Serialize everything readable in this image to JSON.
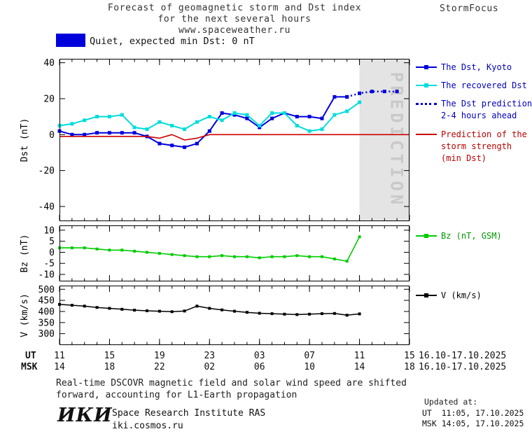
{
  "header": {
    "title_line1": "Forecast of geomagnetic storm and Dst index",
    "title_line2": "for the next several hours",
    "title_line3": "www.spaceweather.ru",
    "brand": "StormFocus"
  },
  "status": {
    "label": "Quiet, expected min Dst: 0 nT",
    "box_color": "#0000dd"
  },
  "colors": {
    "dst_blue": "#0000dd",
    "recovered_cyan": "#00dddd",
    "strength_red": "#cc0000",
    "bz_green": "#00cc00",
    "v_black": "#000000",
    "legend_text_blue": "#0000bb",
    "legend_text_red": "#bb0000",
    "legend_text_green": "#009900",
    "legend_text_black": "#000000",
    "band_gray": "#e4e4e4"
  },
  "legend_dst": {
    "kyoto": {
      "lines": [
        "The Dst, Kyoto"
      ]
    },
    "recovered": {
      "lines": [
        "The recovered Dst"
      ]
    },
    "prediction": {
      "lines": [
        "The Dst prediction",
        "2-4 hours ahead"
      ]
    },
    "strength": {
      "lines": [
        "Prediction of the",
        "storm strength",
        "(min Dst)"
      ]
    }
  },
  "legend_bz": {
    "lines": [
      "Bz (nT, GSM)"
    ]
  },
  "legend_v": {
    "lines": [
      "V (km/s)"
    ]
  },
  "xaxis": {
    "ut_label": "UT",
    "msk_label": "MSK",
    "tick_hours": [
      11,
      15,
      19,
      23,
      27,
      31,
      35,
      39
    ],
    "ut_labels": [
      "11",
      "15",
      "19",
      "23",
      "03",
      "07",
      "11",
      "15"
    ],
    "msk_labels": [
      "14",
      "18",
      "22",
      "02",
      "06",
      "10",
      "14",
      "18"
    ],
    "ut_date_range": "16.10-17.10.2025",
    "msk_date_range": "16.10-17.10.2025"
  },
  "chart_data": [
    {
      "type": "line",
      "title": "Dst index: observed, recovered and predicted",
      "ylabel": "Dst (nT)",
      "xlabel": "UT hours 16.10-17.10.2025",
      "xlim": [
        11,
        39
      ],
      "ylim": [
        -48,
        42
      ],
      "yticks": [
        40,
        20,
        0,
        -20,
        -40
      ],
      "grid": false,
      "legend_position": "right",
      "prediction_band": {
        "x0": 35,
        "x1": 39,
        "label": "PREDICTION",
        "fill": "#e4e4e4",
        "text_color": "#c9c9c9"
      },
      "series": [
        {
          "name": "The Dst, Kyoto",
          "color": "#0000dd",
          "line": "solid",
          "marker": "square",
          "width": 2,
          "marker_size": 5,
          "x": [
            11,
            12,
            13,
            14,
            15,
            16,
            17,
            18,
            19,
            20,
            21,
            22,
            23,
            24,
            25,
            26,
            27,
            28,
            29,
            30,
            31,
            32,
            33,
            34
          ],
          "y": [
            2,
            0,
            0,
            1,
            1,
            1,
            1,
            -1,
            -5,
            -6,
            -7,
            -5,
            2,
            12,
            11,
            9,
            4,
            9,
            12,
            10,
            10,
            9,
            21,
            21
          ]
        },
        {
          "name": "The recovered Dst",
          "color": "#00dddd",
          "line": "solid",
          "marker": "square",
          "width": 2,
          "marker_size": 5,
          "x": [
            11,
            12,
            13,
            14,
            15,
            16,
            17,
            18,
            19,
            20,
            21,
            22,
            23,
            24,
            25,
            26,
            27,
            28,
            29,
            30,
            31,
            32,
            33,
            34,
            35
          ],
          "y": [
            5,
            6,
            8,
            10,
            10,
            11,
            4,
            3,
            7,
            5,
            3,
            7,
            10,
            8,
            12,
            11,
            5,
            12,
            12,
            5,
            2,
            3,
            11,
            13,
            18
          ]
        },
        {
          "name": "The Dst prediction 2-4 hours ahead",
          "color": "#0000dd",
          "line": "dotted",
          "marker": "square",
          "width": 2.5,
          "marker_size": 5,
          "x": [
            34,
            35,
            36,
            37,
            38
          ],
          "y": [
            21,
            23,
            24,
            24,
            24
          ]
        },
        {
          "name": "Prediction of the storm strength (min Dst)",
          "color": "#cc0000",
          "line": "solid",
          "marker": "none",
          "width": 1.6,
          "x": [
            11,
            12,
            13,
            14,
            15,
            16,
            17,
            18,
            19,
            20,
            21,
            22,
            23,
            24,
            25,
            26,
            27,
            28,
            29,
            30,
            31,
            32,
            33,
            34,
            35,
            36,
            37,
            38,
            39
          ],
          "y": [
            -1,
            -1,
            -1,
            -1,
            -1,
            -1,
            -1,
            -1,
            -2,
            0,
            -3,
            -2,
            0,
            0,
            0,
            0,
            0,
            0,
            0,
            0,
            0,
            0,
            0,
            0,
            0,
            0,
            0,
            0,
            0
          ]
        }
      ]
    },
    {
      "type": "line",
      "title": "Bz component of interplanetary magnetic field",
      "ylabel": "Bz (nT)",
      "xlim": [
        11,
        39
      ],
      "ylim": [
        -13,
        12
      ],
      "yticks": [
        10,
        5,
        0,
        -5,
        -10
      ],
      "grid": false,
      "series": [
        {
          "name": "Bz (nT, GSM)",
          "color": "#00cc00",
          "line": "solid",
          "marker": "square",
          "width": 1.6,
          "marker_size": 4,
          "x": [
            11,
            12,
            13,
            14,
            15,
            16,
            17,
            18,
            19,
            20,
            21,
            22,
            23,
            24,
            25,
            26,
            27,
            28,
            29,
            30,
            31,
            32,
            33,
            34,
            35
          ],
          "y": [
            2,
            2,
            2,
            1.5,
            1,
            1,
            0.5,
            0,
            -0.5,
            -1,
            -1.5,
            -2,
            -2,
            -1.5,
            -2,
            -2,
            -2.5,
            -2,
            -2,
            -1.5,
            -2,
            -2,
            -3,
            -4,
            7
          ]
        }
      ]
    },
    {
      "type": "line",
      "title": "Solar wind speed",
      "ylabel": "V (km/s)",
      "xlim": [
        11,
        39
      ],
      "ylim": [
        250,
        515
      ],
      "yticks": [
        500,
        450,
        400,
        350,
        300
      ],
      "grid": false,
      "series": [
        {
          "name": "V (km/s)",
          "color": "#000000",
          "line": "solid",
          "marker": "square",
          "width": 1.5,
          "marker_size": 4,
          "x": [
            11,
            12,
            13,
            14,
            15,
            16,
            17,
            18,
            19,
            20,
            21,
            22,
            23,
            24,
            25,
            26,
            27,
            28,
            29,
            30,
            31,
            32,
            33,
            34,
            35
          ],
          "y": [
            432,
            428,
            424,
            418,
            414,
            410,
            406,
            403,
            401,
            399,
            402,
            424,
            414,
            407,
            401,
            396,
            392,
            390,
            388,
            386,
            388,
            390,
            391,
            383,
            389
          ]
        }
      ]
    }
  ],
  "footer": {
    "note_line1": "Real-time DSCOVR magnetic field and solar wind speed are shifted",
    "note_line2": "forward, accounting for L1-Earth propagation",
    "logo_text": "ИКИ",
    "institute": "Space Research Institute RAS",
    "institute_site": "iki.cosmos.ru",
    "updated_label": "Updated at:",
    "updated_ut": "UT  11:05, 17.10.2025",
    "updated_msk": "MSK 14:05, 17.10.2025"
  }
}
